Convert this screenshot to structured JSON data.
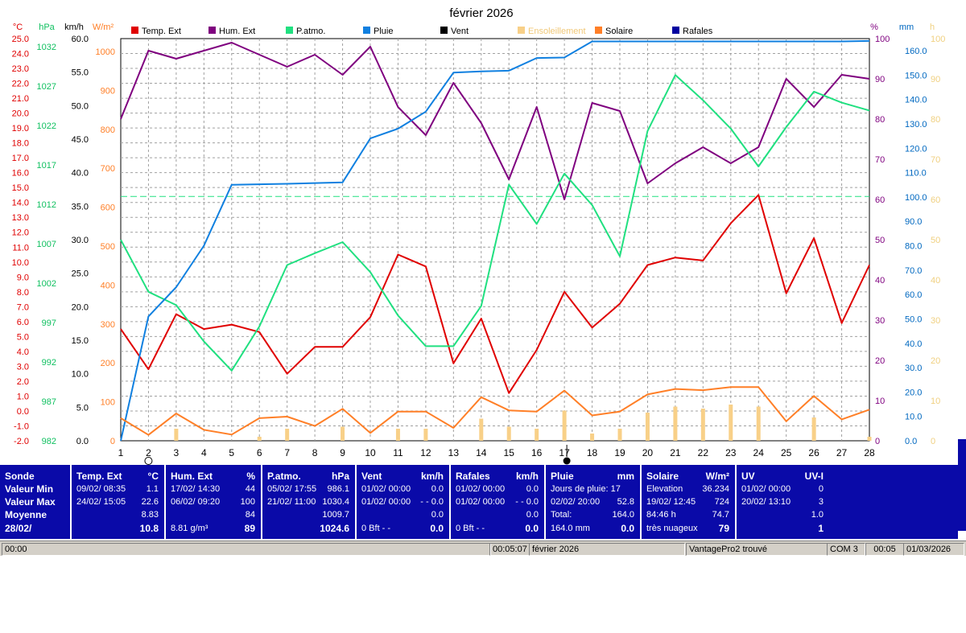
{
  "chart_data": {
    "type": "line",
    "title": "février 2026",
    "x": [
      1,
      2,
      3,
      4,
      5,
      6,
      7,
      8,
      9,
      10,
      11,
      12,
      13,
      14,
      15,
      16,
      17,
      18,
      19,
      20,
      21,
      22,
      23,
      24,
      25,
      26,
      27,
      28
    ],
    "axes": {
      "temp_c": {
        "label": "°C",
        "color": "#e00000",
        "ticks": [
          "25.0",
          "24.0",
          "23.0",
          "22.0",
          "21.0",
          "20.0",
          "19.0",
          "18.0",
          "17.0",
          "16.0",
          "15.0",
          "14.0",
          "13.0",
          "12.0",
          "11.0",
          "10.0",
          "9.0",
          "8.0",
          "7.0",
          "6.0",
          "5.0",
          "4.0",
          "3.0",
          "2.0",
          "1.0",
          "0.0",
          "-1.0",
          "-2.0"
        ]
      },
      "pressure_hpa": {
        "label": "hPa",
        "color": "#10c060",
        "ticks": [
          "1032",
          "1027",
          "1022",
          "1017",
          "1012",
          "1007",
          "1002",
          "997",
          "992",
          "987",
          "982"
        ]
      },
      "wind_kmh": {
        "label": "km/h",
        "color": "#000000",
        "ticks": [
          "60.0",
          "55.0",
          "50.0",
          "45.0",
          "40.0",
          "35.0",
          "30.0",
          "25.0",
          "20.0",
          "15.0",
          "10.0",
          "5.0",
          "0.0"
        ]
      },
      "solar_wm2": {
        "label": "W/m²",
        "color": "#ff7f27",
        "ticks": [
          "1000",
          "900",
          "800",
          "700",
          "600",
          "500",
          "400",
          "300",
          "200",
          "100",
          "0"
        ]
      },
      "humidity_pct": {
        "label": "%",
        "color": "#7f007f",
        "ticks": [
          "100",
          "90",
          "80",
          "70",
          "60",
          "50",
          "40",
          "30",
          "20",
          "10",
          "0"
        ]
      },
      "rain_mm": {
        "label": "mm",
        "color": "#0068c0",
        "ticks": [
          "160.0",
          "150.0",
          "140.0",
          "130.0",
          "120.0",
          "110.0",
          "100.0",
          "90.0",
          "80.0",
          "70.0",
          "60.0",
          "50.0",
          "40.0",
          "30.0",
          "20.0",
          "10.0",
          "0.0"
        ]
      },
      "sun_h": {
        "label": "h",
        "color": "#f0d080",
        "ticks": [
          "100",
          "90",
          "80",
          "70",
          "60",
          "50",
          "40",
          "30",
          "20",
          "10",
          "0"
        ]
      }
    },
    "legend": [
      "Temp. Ext",
      "Hum. Ext",
      "P.atmo.",
      "Pluie",
      "Vent",
      "Ensoleillement",
      "Solaire",
      "Rafales"
    ],
    "series": [
      {
        "name": "Temp. Ext",
        "color": "#e00000",
        "axis": "temp_c",
        "values": [
          5.5,
          2.8,
          6.5,
          5.5,
          5.8,
          5.3,
          2.5,
          4.3,
          4.3,
          6.3,
          10.5,
          9.7,
          3.2,
          6.2,
          1.2,
          4.1,
          8.0,
          5.6,
          7.2,
          9.8,
          10.3,
          10.1,
          12.6,
          14.5,
          7.9,
          11.6,
          5.9,
          9.8
        ]
      },
      {
        "name": "Hum. Ext",
        "color": "#7f007f",
        "axis": "humidity_pct",
        "values": [
          80,
          97,
          95,
          97,
          99,
          96,
          93,
          96,
          91,
          98,
          83,
          76,
          89,
          79,
          65,
          83,
          60,
          84,
          82,
          64,
          69,
          73,
          69,
          73,
          90,
          83,
          91,
          90
        ]
      },
      {
        "name": "P.atmo.",
        "color": "#20e080",
        "axis": "pressure_hpa",
        "values": [
          1007.5,
          1000.9,
          999.2,
          994.6,
          990.9,
          996.5,
          1004.3,
          1005.8,
          1007.2,
          1003.4,
          997.9,
          994.0,
          994.0,
          999.1,
          1014.5,
          1009.5,
          1015.9,
          1011.9,
          1005.4,
          1021.3,
          1028.4,
          1025.2,
          1021.6,
          1016.8,
          1021.8,
          1026.3,
          1024.9,
          1023.9
        ]
      },
      {
        "name": "Pluie",
        "color": "#1080e0",
        "axis": "rain_mm",
        "values": [
          0.0,
          51.0,
          63.0,
          80.0,
          105.0,
          105.2,
          105.4,
          105.7,
          106.0,
          124.0,
          128.0,
          135.0,
          151.0,
          151.5,
          151.8,
          157.0,
          157.2,
          163.8,
          163.8,
          163.8,
          163.8,
          163.8,
          163.8,
          163.8,
          163.8,
          163.8,
          163.8,
          164.0
        ]
      },
      {
        "name": "Solaire",
        "color": "#ff7f27",
        "axis": "solar_wm2",
        "values": [
          58,
          15,
          70,
          28,
          16,
          58,
          62,
          38,
          82,
          20,
          75,
          75,
          33,
          112,
          78,
          75,
          129,
          65,
          75,
          119,
          133,
          130,
          138,
          138,
          50,
          115,
          55,
          80
        ]
      },
      {
        "name": "Ensoleillement",
        "color": "#f8d088",
        "axis": "sun_h",
        "type": "bar",
        "values": [
          0,
          0,
          3,
          0,
          0,
          1,
          3,
          0,
          3.5,
          0,
          3,
          3,
          0,
          5.5,
          3.5,
          3,
          7.5,
          1.8,
          3,
          7,
          8.5,
          8,
          9,
          8.5,
          0,
          5.8,
          0,
          1
        ]
      }
    ],
    "reference_line": {
      "axis": "pressure_hpa",
      "value": 1013,
      "color": "#20e080",
      "style": "dashed"
    },
    "grid": true,
    "x_markers": {
      "day_2": "circle",
      "day_17": "filled-circle"
    }
  },
  "panel": {
    "row_labels": [
      "Sonde",
      "Valeur Min",
      "Valeur Max",
      "Moyenne",
      "28/02/"
    ],
    "temp": {
      "title": "Temp. Ext",
      "unit": "°C",
      "min_time": "09/02/  08:35",
      "min_val": "1.1",
      "max_time": "24/02/  15:05",
      "max_val": "22.6",
      "avg": "8.83",
      "cur": "10.8"
    },
    "hum": {
      "title": "Hum. Ext",
      "unit": "%",
      "min_time": "17/02/  14:30",
      "min_val": "44",
      "max_time": "06/02/  09:20",
      "max_val": "100",
      "avg": "84",
      "cur_note": "8.81 g/m³",
      "cur": "89"
    },
    "patmo": {
      "title": "P.atmo.",
      "unit": "hPa",
      "min_time": "05/02/  17:55",
      "min_val": "986.1",
      "max_time": "21/02/  11:00",
      "max_val": "1030.4",
      "avg": "1009.7",
      "cur": "1024.6"
    },
    "vent": {
      "title": "Vent",
      "unit": "km/h",
      "min_time": "01/02/  00:00",
      "min_val": "0.0",
      "max_time": "01/02/  00:00",
      "max_val": "- - 0.0",
      "avg": "0.0",
      "cur_note": "0 Bft - -",
      "cur": "0.0"
    },
    "rafales": {
      "title": "Rafales",
      "unit": "km/h",
      "min_time": "01/02/  00:00",
      "min_val": "0.0",
      "max_time": "01/02/  00:00",
      "max_val": "- - 0.0",
      "avg": "0.0",
      "cur_note": "0 Bft - -",
      "cur": "0.0"
    },
    "pluie": {
      "title": "Pluie",
      "unit": "mm",
      "r1": "Jours de pluie: 17",
      "r2_time": "02/02/  20:00",
      "r2_val": "52.8",
      "r3_label": "Total:",
      "r3_val": "164.0",
      "cur_note": "164.0 mm",
      "cur": "0.0"
    },
    "solaire": {
      "title": "Solaire",
      "unit": "W/m²",
      "r1_label": "Elevation",
      "r1_val": "36.234",
      "r2_time": "19/02/  12:45",
      "r2_val": "724",
      "r3_label": "84:46 h",
      "r3_val": "74.7",
      "cur_note": "très nuageux",
      "cur": "79"
    },
    "uv": {
      "title": "UV",
      "unit": "UV-I",
      "min_time": "01/02/  00:00",
      "min_val": "0",
      "max_time": "20/02/  13:10",
      "max_val": "3",
      "avg": "1.0",
      "cur": "1"
    }
  },
  "status": {
    "left": "00:00",
    "elapsed": "00:05:07",
    "month": "février 2026",
    "station": "VantagePro2 trouvé",
    "port": "COM 3",
    "time": "00:05",
    "date": "01/03/2026"
  }
}
